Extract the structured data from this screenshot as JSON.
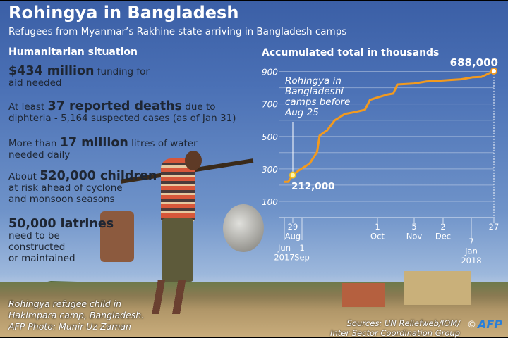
{
  "header": {
    "title": "Rohingya in Bangladesh",
    "subtitle": "Refugees from Myanmar’s Rakhine state arriving in Bangladesh camps"
  },
  "humanitarian": {
    "heading": "Humanitarian situation",
    "items": [
      {
        "lead": "",
        "bold": "$434 million",
        "rest": " funding for",
        "line2": "aid needed",
        "line3": "",
        "line4": ""
      },
      {
        "lead": "At least ",
        "bold": "37 reported deaths",
        "rest": " due to",
        "line2": "diphteria - 5,164 suspected cases  (as of Jan 31)",
        "line3": "",
        "line4": ""
      },
      {
        "lead": "More than ",
        "bold": "17 million",
        "rest": " litres of water",
        "line2": "needed daily",
        "line3": "",
        "line4": ""
      },
      {
        "lead": "About ",
        "bold": "520,000 children",
        "rest": "",
        "line2": "at risk ahead of cyclone",
        "line3": "and monsoon seasons",
        "line4": ""
      },
      {
        "lead": "",
        "bold": "50,000 latrines",
        "rest": "",
        "line2": "need to be",
        "line3": "constructed",
        "line4": "or maintained"
      }
    ]
  },
  "photo": {
    "caption": [
      "Rohingya refugee child in",
      "Hakimpara camp, Bangladesh.",
      "AFP Photo: Munir Uz Zaman"
    ]
  },
  "footer": {
    "sources": [
      "Sources: UN Reliefweb/IOM/",
      "Inter Sector Coordination Group"
    ],
    "copyright": "©",
    "logo": "AFP"
  },
  "chart_data": {
    "type": "line",
    "title": "Accumulated total in thousands",
    "xlabel": "",
    "ylabel": "",
    "ylim": [
      0,
      900
    ],
    "grid": true,
    "line_color": "#f39a1e",
    "yticks": [
      "100",
      "300",
      "500",
      "700",
      "900"
    ],
    "xticks": [
      {
        "date": "2017-06-01",
        "label": [
          "Jun",
          "2017"
        ],
        "row": 2
      },
      {
        "date": "2017-08-29",
        "label": [
          "29",
          "Aug"
        ],
        "row": 1
      },
      {
        "date": "2017-09-01",
        "label": [
          "1",
          "Sep"
        ],
        "row": 2
      },
      {
        "date": "2017-10-01",
        "label": [
          "1",
          "Oct"
        ],
        "row": 1
      },
      {
        "date": "2017-11-05",
        "label": [
          "5",
          "Nov"
        ],
        "row": 1
      },
      {
        "date": "2017-12-02",
        "label": [
          "2",
          "Dec"
        ],
        "row": 1
      },
      {
        "date": "2018-01-07",
        "label": [
          "7",
          "Jan",
          "2018"
        ],
        "row": 2
      },
      {
        "date": "2018-01-27",
        "label": [
          "27"
        ],
        "row": 1
      }
    ],
    "series": [
      {
        "points": [
          [
            "2017-06-01",
            220
          ],
          [
            "2017-07-10",
            220
          ],
          [
            "2017-08-29",
            262
          ],
          [
            "2017-08-31",
            291
          ],
          [
            "2017-09-04",
            332
          ],
          [
            "2017-09-07",
            404
          ],
          [
            "2017-09-08",
            505
          ],
          [
            "2017-09-10",
            527
          ],
          [
            "2017-09-11",
            537
          ],
          [
            "2017-09-14",
            599
          ],
          [
            "2017-09-16",
            618
          ],
          [
            "2017-09-18",
            638
          ],
          [
            "2017-09-22",
            650
          ],
          [
            "2017-09-26",
            664
          ],
          [
            "2017-09-28",
            725
          ],
          [
            "2017-10-01",
            740
          ],
          [
            "2017-10-11",
            759
          ],
          [
            "2017-10-16",
            764
          ],
          [
            "2017-10-20",
            820
          ],
          [
            "2017-11-05",
            826
          ],
          [
            "2017-11-16",
            838
          ],
          [
            "2017-12-03",
            845
          ],
          [
            "2017-12-25",
            852
          ],
          [
            "2018-01-08",
            864
          ],
          [
            "2018-01-16",
            867
          ],
          [
            "2018-01-27",
            903
          ]
        ]
      }
    ],
    "annotations": {
      "before": {
        "date": "2017-08-29",
        "value_label": "212,000",
        "text": [
          "Rohingya in",
          "Bangladeshi",
          "camps before",
          "Aug 25"
        ]
      },
      "total": {
        "date": "2018-01-27",
        "value_label": "688,000"
      }
    }
  }
}
